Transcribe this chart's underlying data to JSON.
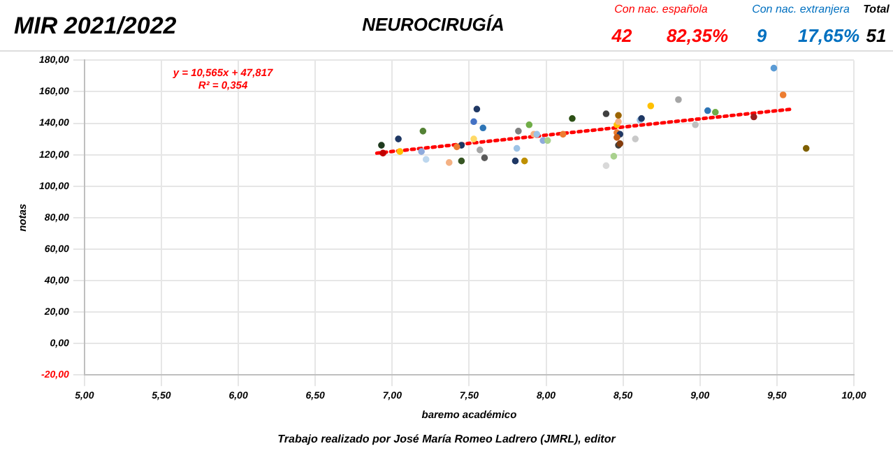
{
  "chart_data": {
    "type": "scatter",
    "title": "MIR 2021/2022",
    "subtitle": "NEUROCIRUGÍA",
    "xlabel": "baremo académico",
    "ylabel": "notas",
    "annotations": [
      "Con nac. española",
      "42",
      "82,35%",
      "Con nac. extranjera",
      "9",
      "17,65%",
      "Total",
      "51",
      "y = 10,565x + 47,817",
      "R² = 0,354",
      "Trabajo realizado por José María Romeo Ladrero (JMRL), editor"
    ],
    "xlim": [
      5,
      10
    ],
    "xticks": [
      {
        "value": 5,
        "label": "5,00"
      },
      {
        "value": 5.5,
        "label": "5,50"
      },
      {
        "value": 6,
        "label": "6,00"
      },
      {
        "value": 6.5,
        "label": "6,50"
      },
      {
        "value": 7,
        "label": "7,00"
      },
      {
        "value": 7.5,
        "label": "7,50"
      },
      {
        "value": 8,
        "label": "8,00"
      },
      {
        "value": 8.5,
        "label": "8,50"
      },
      {
        "value": 9,
        "label": "9,00"
      },
      {
        "value": 9.5,
        "label": "9,50"
      },
      {
        "value": 10,
        "label": "10,00"
      }
    ],
    "ylim": [
      -20,
      180
    ],
    "yticks": [
      {
        "value": -20,
        "label": "-20,00"
      },
      {
        "value": 0,
        "label": "0,00"
      },
      {
        "value": 20,
        "label": "20,00"
      },
      {
        "value": 40,
        "label": "40,00"
      },
      {
        "value": 60,
        "label": "60,00"
      },
      {
        "value": 80,
        "label": "80,00"
      },
      {
        "value": 100,
        "label": "100,00"
      },
      {
        "value": 120,
        "label": "120,00"
      },
      {
        "value": 140,
        "label": "140,00"
      },
      {
        "value": 160,
        "label": "160,00"
      },
      {
        "value": 180,
        "label": "180,00"
      }
    ],
    "grid": true,
    "legend": false,
    "marker": "circle",
    "series": [
      {
        "type": "scatter",
        "x": [
          6.93,
          6.94,
          7.04,
          7.05,
          7.2,
          7.19,
          7.22,
          7.37,
          7.45,
          7.45,
          7.42,
          7.53,
          7.55,
          7.59,
          7.53,
          7.57,
          7.6,
          7.82,
          7.89,
          7.92,
          7.94,
          7.98,
          8.01,
          7.81,
          7.8,
          7.86,
          8.11,
          8.17,
          8.39,
          8.39,
          8.44,
          8.46,
          8.46,
          8.47,
          8.47,
          8.47,
          8.48,
          8.48,
          8.46,
          8.58,
          8.61,
          8.62,
          8.68,
          8.86,
          8.97,
          9.05,
          9.1,
          9.35,
          9.48,
          9.54,
          9.69
        ],
        "values": [
          126,
          121,
          130,
          122,
          135,
          122,
          117,
          115,
          116,
          126,
          125,
          141,
          149,
          137,
          130,
          123,
          118,
          135,
          139,
          133,
          133,
          129,
          129,
          124,
          116,
          116,
          133,
          143,
          146,
          113,
          119,
          139,
          134,
          141,
          145,
          126,
          133,
          127,
          131,
          130,
          142,
          143,
          151,
          155,
          139,
          148,
          147,
          144,
          175,
          158,
          124
        ],
        "colors": [
          "#1f3b1f",
          "#c00000",
          "#1f3864",
          "#ffc000",
          "#548235",
          "#8faadc",
          "#bdd7ee",
          "#f4b183",
          "#375623",
          "#1f3864",
          "#ed7d31",
          "#4472c4",
          "#203864",
          "#2e75b6",
          "#ffd966",
          "#a5a5a5",
          "#595959",
          "#7f7f7f",
          "#70ad47",
          "#f4b183",
          "#9dc3e6",
          "#8faadc",
          "#a9d18e",
          "#9dc3e6",
          "#1f3864",
          "#bf9000",
          "#ed7d31",
          "#2d5016",
          "#404040",
          "#d9d9d9",
          "#a9d18e",
          "#ffc000",
          "#ed7d31",
          "#f4b183",
          "#9c6500",
          "#404040",
          "#203864",
          "#843c0c",
          "#c55a11",
          "#c9c9c9",
          "#9dc3e6",
          "#1f3864",
          "#ffc000",
          "#a5a5a5",
          "#bfbfbf",
          "#2e75b6",
          "#70ad47",
          "#9c1c1c",
          "#5b9bd5",
          "#ed7d31",
          "#7f6000"
        ]
      },
      {
        "type": "line",
        "x": [
          6.9,
          9.6
        ],
        "values": [
          121,
          149
        ],
        "color": "#ff0000",
        "line_style": "dotted",
        "marker": "none"
      }
    ]
  }
}
